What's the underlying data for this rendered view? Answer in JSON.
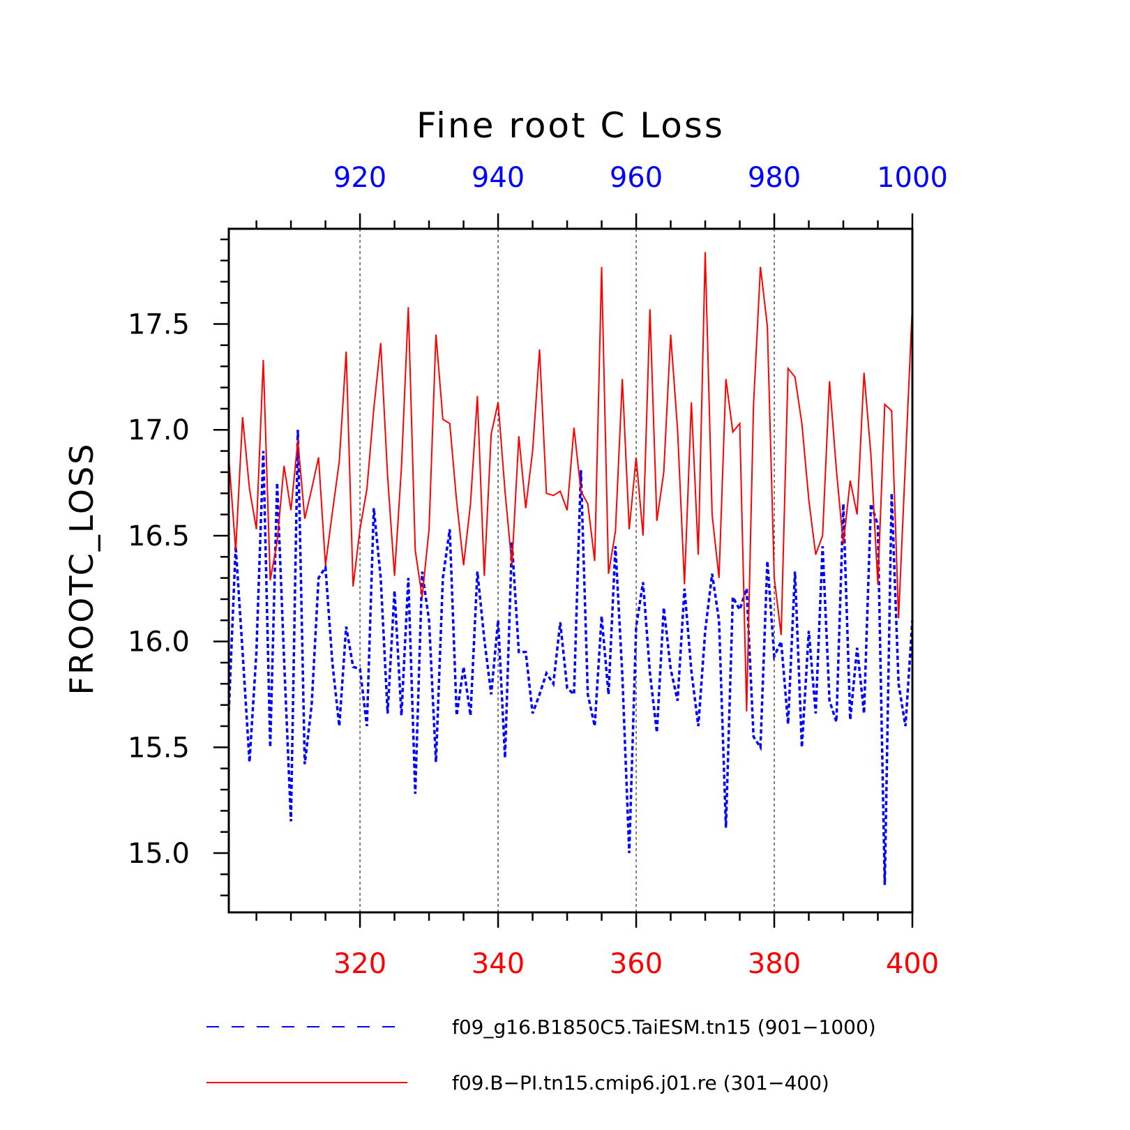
{
  "chart_data": {
    "type": "line",
    "title": "Fine root C Loss",
    "ylabel": "FROOTC_LOSS",
    "ylim": [
      14.72,
      17.95
    ],
    "yticks": [
      "15.0",
      "15.5",
      "16.0",
      "16.5",
      "17.0",
      "17.5"
    ],
    "bottom_axis": {
      "range": [
        301,
        400
      ],
      "ticks": [
        "320",
        "340",
        "360",
        "380",
        "400"
      ],
      "color": "#ff0000"
    },
    "top_axis": {
      "range": [
        901,
        1000
      ],
      "ticks": [
        "920",
        "940",
        "960",
        "980",
        "1000"
      ],
      "color": "#0000ff"
    },
    "gridlines_at_x": [
      320,
      340,
      360,
      380
    ],
    "series": [
      {
        "name": "f09_g16.B1850C5.TaiESM.tn15 (901−1000)",
        "color": "#0000ff",
        "style": "dashed",
        "axis": "top",
        "x": [
          901,
          902,
          903,
          904,
          905,
          906,
          907,
          908,
          909,
          910,
          911,
          912,
          913,
          914,
          915,
          916,
          917,
          918,
          919,
          920,
          921,
          922,
          923,
          924,
          925,
          926,
          927,
          928,
          929,
          930,
          931,
          932,
          933,
          934,
          935,
          936,
          937,
          938,
          939,
          940,
          941,
          942,
          943,
          944,
          945,
          946,
          947,
          948,
          949,
          950,
          951,
          952,
          953,
          954,
          955,
          956,
          957,
          958,
          959,
          960,
          961,
          962,
          963,
          964,
          965,
          966,
          967,
          968,
          969,
          970,
          971,
          972,
          973,
          974,
          975,
          976,
          977,
          978,
          979,
          980,
          981,
          982,
          983,
          984,
          985,
          986,
          987,
          988,
          989,
          990,
          991,
          992,
          993,
          994,
          995,
          996,
          997,
          998,
          999,
          1000
        ],
        "values": [
          15.67,
          16.45,
          15.95,
          15.43,
          15.95,
          16.9,
          15.5,
          16.75,
          15.92,
          15.15,
          17.0,
          15.42,
          15.7,
          16.3,
          16.35,
          15.9,
          15.6,
          16.07,
          15.88,
          15.87,
          15.6,
          16.63,
          16.3,
          15.66,
          16.24,
          15.65,
          16.3,
          15.28,
          16.33,
          16.1,
          15.43,
          16.3,
          16.53,
          15.65,
          15.88,
          15.65,
          16.33,
          16.01,
          15.75,
          16.1,
          15.45,
          16.47,
          15.95,
          15.95,
          15.66,
          15.75,
          15.85,
          15.8,
          16.09,
          15.78,
          15.75,
          16.81,
          15.75,
          15.6,
          16.12,
          15.75,
          16.45,
          15.84,
          15.0,
          16.07,
          16.28,
          15.85,
          15.57,
          16.16,
          15.87,
          15.72,
          16.25,
          15.86,
          15.6,
          16.05,
          16.32,
          16.1,
          15.12,
          16.21,
          16.15,
          16.25,
          15.55,
          15.5,
          16.38,
          15.93,
          16.0,
          15.61,
          16.33,
          15.5,
          16.05,
          15.66,
          16.45,
          15.72,
          15.62,
          16.65,
          15.63,
          15.97,
          15.66,
          16.65,
          16.55,
          14.85,
          16.7,
          15.8,
          15.6,
          16.1
        ]
      },
      {
        "name": "f09.B−PI.tn15.cmip6.j01.re (301−400)",
        "color": "#ff0000",
        "style": "solid",
        "axis": "bottom",
        "x": [
          301,
          302,
          303,
          304,
          305,
          306,
          307,
          308,
          309,
          310,
          311,
          312,
          313,
          314,
          315,
          316,
          317,
          318,
          319,
          320,
          321,
          322,
          323,
          324,
          325,
          326,
          327,
          328,
          329,
          330,
          331,
          332,
          333,
          334,
          335,
          336,
          337,
          338,
          339,
          340,
          341,
          342,
          343,
          344,
          345,
          346,
          347,
          348,
          349,
          350,
          351,
          352,
          353,
          354,
          355,
          356,
          357,
          358,
          359,
          360,
          361,
          362,
          363,
          364,
          365,
          366,
          367,
          368,
          369,
          370,
          371,
          372,
          373,
          374,
          375,
          376,
          377,
          378,
          379,
          380,
          381,
          382,
          383,
          384,
          385,
          386,
          387,
          388,
          389,
          390,
          391,
          392,
          393,
          394,
          395,
          396,
          397,
          398,
          399,
          400
        ],
        "values": [
          16.87,
          16.43,
          17.06,
          16.72,
          16.53,
          17.33,
          16.29,
          16.47,
          16.83,
          16.62,
          16.95,
          16.58,
          16.72,
          16.87,
          16.36,
          16.61,
          16.85,
          17.37,
          16.26,
          16.53,
          16.72,
          17.1,
          17.41,
          16.78,
          16.31,
          16.82,
          17.58,
          16.43,
          16.21,
          16.53,
          17.45,
          17.05,
          17.03,
          16.66,
          16.36,
          16.65,
          17.16,
          16.31,
          16.98,
          17.13,
          16.71,
          16.36,
          16.97,
          16.63,
          16.9,
          17.38,
          16.7,
          16.69,
          16.71,
          16.62,
          17.01,
          16.71,
          16.65,
          16.38,
          17.77,
          16.32,
          16.52,
          17.24,
          16.53,
          16.87,
          16.5,
          17.57,
          16.57,
          16.8,
          17.45,
          17.0,
          16.27,
          17.13,
          16.41,
          17.84,
          16.6,
          16.3,
          17.24,
          16.99,
          17.03,
          15.67,
          17.12,
          17.77,
          17.49,
          16.3,
          16.03,
          17.29,
          17.25,
          17.03,
          16.67,
          16.41,
          16.5,
          17.23,
          16.81,
          16.46,
          16.76,
          16.6,
          17.27,
          16.88,
          16.27,
          17.12,
          17.09,
          16.11,
          16.85,
          17.59
        ]
      }
    ],
    "legend": {
      "placement": "below",
      "entries": [
        "f09_g16.B1850C5.TaiESM.tn15 (901−1000)",
        "f09.B−PI.tn15.cmip6.j01.re (301−400)"
      ]
    }
  }
}
